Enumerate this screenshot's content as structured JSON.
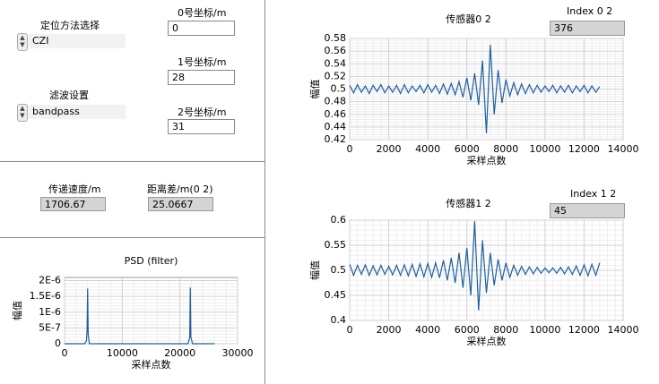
{
  "controls": {
    "method": {
      "label": "定位方法选择",
      "value": "CZI"
    },
    "filter": {
      "label": "滤波设置",
      "value": "bandpass"
    },
    "coord0": {
      "label": "0号坐标/m",
      "value": "0"
    },
    "coord1": {
      "label": "1号坐标/m",
      "value": "28"
    },
    "coord2": {
      "label": "2号坐标/m",
      "value": "31"
    },
    "speed": {
      "label": "传递速度/m",
      "value": "1706.67"
    },
    "distance": {
      "label": "距离差/m(0 2)",
      "value": "25.0667"
    },
    "index02": {
      "label": "Index 0 2",
      "value": "376"
    },
    "index12": {
      "label": "Index 1 2",
      "value": "45"
    }
  },
  "graphs": [
    {
      "type": "line",
      "title": "传感器0 2",
      "xlabel": "采样点数",
      "ylabel": "幅值",
      "color": "#1f5fa0",
      "grid": true,
      "xlim": [
        0,
        14000
      ],
      "ylim": [
        0.42,
        0.58
      ],
      "xticks": [
        0,
        2000,
        4000,
        6000,
        8000,
        10000,
        12000,
        14000
      ],
      "yticks": [
        0.42,
        0.44,
        0.46,
        0.48,
        0.5,
        0.52,
        0.54,
        0.56,
        0.58
      ],
      "x": [
        0,
        200,
        400,
        600,
        800,
        1000,
        1200,
        1400,
        1600,
        1800,
        2000,
        2200,
        2400,
        2600,
        2800,
        3000,
        3200,
        3400,
        3600,
        3800,
        4000,
        4200,
        4400,
        4600,
        4800,
        5000,
        5200,
        5400,
        5600,
        5800,
        6000,
        6200,
        6400,
        6600,
        6800,
        7000,
        7200,
        7400,
        7600,
        7800,
        8000,
        8200,
        8400,
        8600,
        8800,
        9000,
        9200,
        9400,
        9600,
        9800,
        10000,
        10200,
        10400,
        10600,
        10800,
        11000,
        11200,
        11400,
        11600,
        11800,
        12000,
        12200,
        12400,
        12600,
        12800
      ],
      "values": [
        0.506,
        0.494,
        0.507,
        0.495,
        0.505,
        0.493,
        0.506,
        0.496,
        0.507,
        0.494,
        0.505,
        0.495,
        0.506,
        0.493,
        0.507,
        0.494,
        0.505,
        0.496,
        0.506,
        0.494,
        0.507,
        0.495,
        0.506,
        0.493,
        0.508,
        0.492,
        0.509,
        0.491,
        0.512,
        0.487,
        0.518,
        0.482,
        0.525,
        0.475,
        0.545,
        0.43,
        0.57,
        0.46,
        0.53,
        0.478,
        0.515,
        0.489,
        0.51,
        0.491,
        0.508,
        0.493,
        0.507,
        0.494,
        0.506,
        0.495,
        0.505,
        0.496,
        0.506,
        0.494,
        0.505,
        0.495,
        0.506,
        0.494,
        0.505,
        0.496,
        0.506,
        0.494,
        0.505,
        0.495,
        0.504
      ]
    },
    {
      "type": "line",
      "title": "传感器1 2",
      "xlabel": "采样点数",
      "ylabel": "幅值",
      "color": "#1f5fa0",
      "grid": true,
      "xlim": [
        0,
        14000
      ],
      "ylim": [
        0.4,
        0.6
      ],
      "xticks": [
        0,
        2000,
        4000,
        6000,
        8000,
        10000,
        12000,
        14000
      ],
      "yticks": [
        0.4,
        0.45,
        0.5,
        0.55,
        0.6
      ],
      "x": [
        0,
        200,
        400,
        600,
        800,
        1000,
        1200,
        1400,
        1600,
        1800,
        2000,
        2200,
        2400,
        2600,
        2800,
        3000,
        3200,
        3400,
        3600,
        3800,
        4000,
        4200,
        4400,
        4600,
        4800,
        5000,
        5200,
        5400,
        5600,
        5800,
        6000,
        6200,
        6400,
        6600,
        6800,
        7000,
        7200,
        7400,
        7600,
        7800,
        8000,
        8200,
        8400,
        8600,
        8800,
        9000,
        9200,
        9400,
        9600,
        9800,
        10000,
        10200,
        10400,
        10600,
        10800,
        11000,
        11200,
        11400,
        11600,
        11800,
        12000,
        12200,
        12400,
        12600,
        12800
      ],
      "values": [
        0.512,
        0.49,
        0.51,
        0.492,
        0.511,
        0.49,
        0.509,
        0.491,
        0.51,
        0.492,
        0.508,
        0.491,
        0.51,
        0.49,
        0.511,
        0.489,
        0.512,
        0.488,
        0.513,
        0.487,
        0.514,
        0.486,
        0.515,
        0.485,
        0.52,
        0.48,
        0.525,
        0.475,
        0.535,
        0.465,
        0.545,
        0.45,
        0.598,
        0.42,
        0.56,
        0.455,
        0.535,
        0.47,
        0.522,
        0.48,
        0.515,
        0.486,
        0.51,
        0.49,
        0.508,
        0.492,
        0.507,
        0.493,
        0.506,
        0.494,
        0.505,
        0.495,
        0.505,
        0.494,
        0.506,
        0.493,
        0.507,
        0.492,
        0.509,
        0.49,
        0.511,
        0.489,
        0.512,
        0.49,
        0.515
      ]
    },
    {
      "type": "line",
      "title": "PSD (filter)",
      "xlabel": "采样点数",
      "ylabel": "幅值",
      "color": "#1f5fa0",
      "grid": true,
      "xlim": [
        0,
        30000
      ],
      "ylim": [
        0,
        2.1e-06
      ],
      "xticks": [
        0,
        10000,
        20000,
        30000
      ],
      "yticks": [
        0,
        {
          "value": 5e-07,
          "label": "5E-7"
        },
        {
          "value": 1e-06,
          "label": "1E-6"
        },
        {
          "value": 1.5e-06,
          "label": "1.5E-6"
        },
        {
          "value": 2e-06,
          "label": "2E-6"
        }
      ],
      "x": [
        0,
        3500,
        3800,
        3900,
        4000,
        4100,
        4300,
        21400,
        21700,
        21800,
        21900,
        22200,
        26000
      ],
      "values": [
        0,
        0,
        1e-07,
        4e-07,
        1.75e-06,
        3e-07,
        0,
        0,
        2e-07,
        1.78e-06,
        2e-07,
        0,
        0
      ]
    }
  ]
}
